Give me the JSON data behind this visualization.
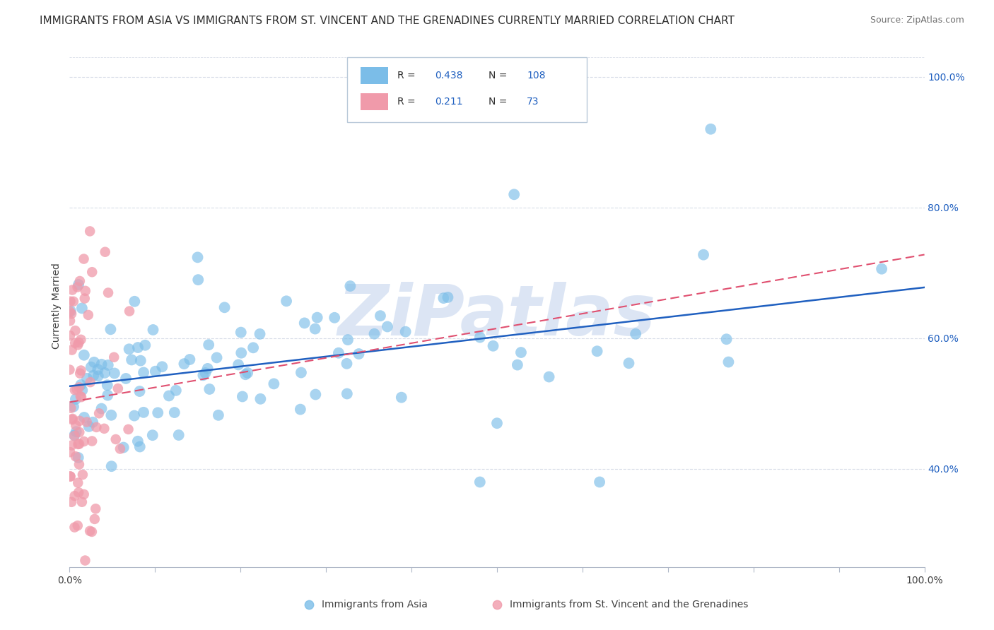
{
  "title": "IMMIGRANTS FROM ASIA VS IMMIGRANTS FROM ST. VINCENT AND THE GRENADINES CURRENTLY MARRIED CORRELATION CHART",
  "source": "Source: ZipAtlas.com",
  "ylabel": "Currently Married",
  "legend_blue_label": "Immigrants from Asia",
  "legend_pink_label": "Immigrants from St. Vincent and the Grenadines",
  "blue_R": 0.438,
  "blue_N": 108,
  "pink_R": 0.211,
  "pink_N": 73,
  "xmin": 0.0,
  "xmax": 1.0,
  "ymin": 0.25,
  "ymax": 1.05,
  "right_yticks": [
    0.4,
    0.6,
    0.8,
    1.0
  ],
  "right_yticklabels": [
    "40.0%",
    "60.0%",
    "80.0%",
    "100.0%"
  ],
  "blue_color": "#7bbde8",
  "pink_color": "#f09aaa",
  "trend_blue_color": "#2060c0",
  "trend_pink_color": "#e05070",
  "background_color": "#ffffff",
  "grid_color": "#d8dde8",
  "watermark": "ZiPatlas",
  "watermark_color": "#c5d5ee",
  "title_fontsize": 11,
  "source_fontsize": 9,
  "axis_label_fontsize": 10,
  "tick_fontsize": 10
}
